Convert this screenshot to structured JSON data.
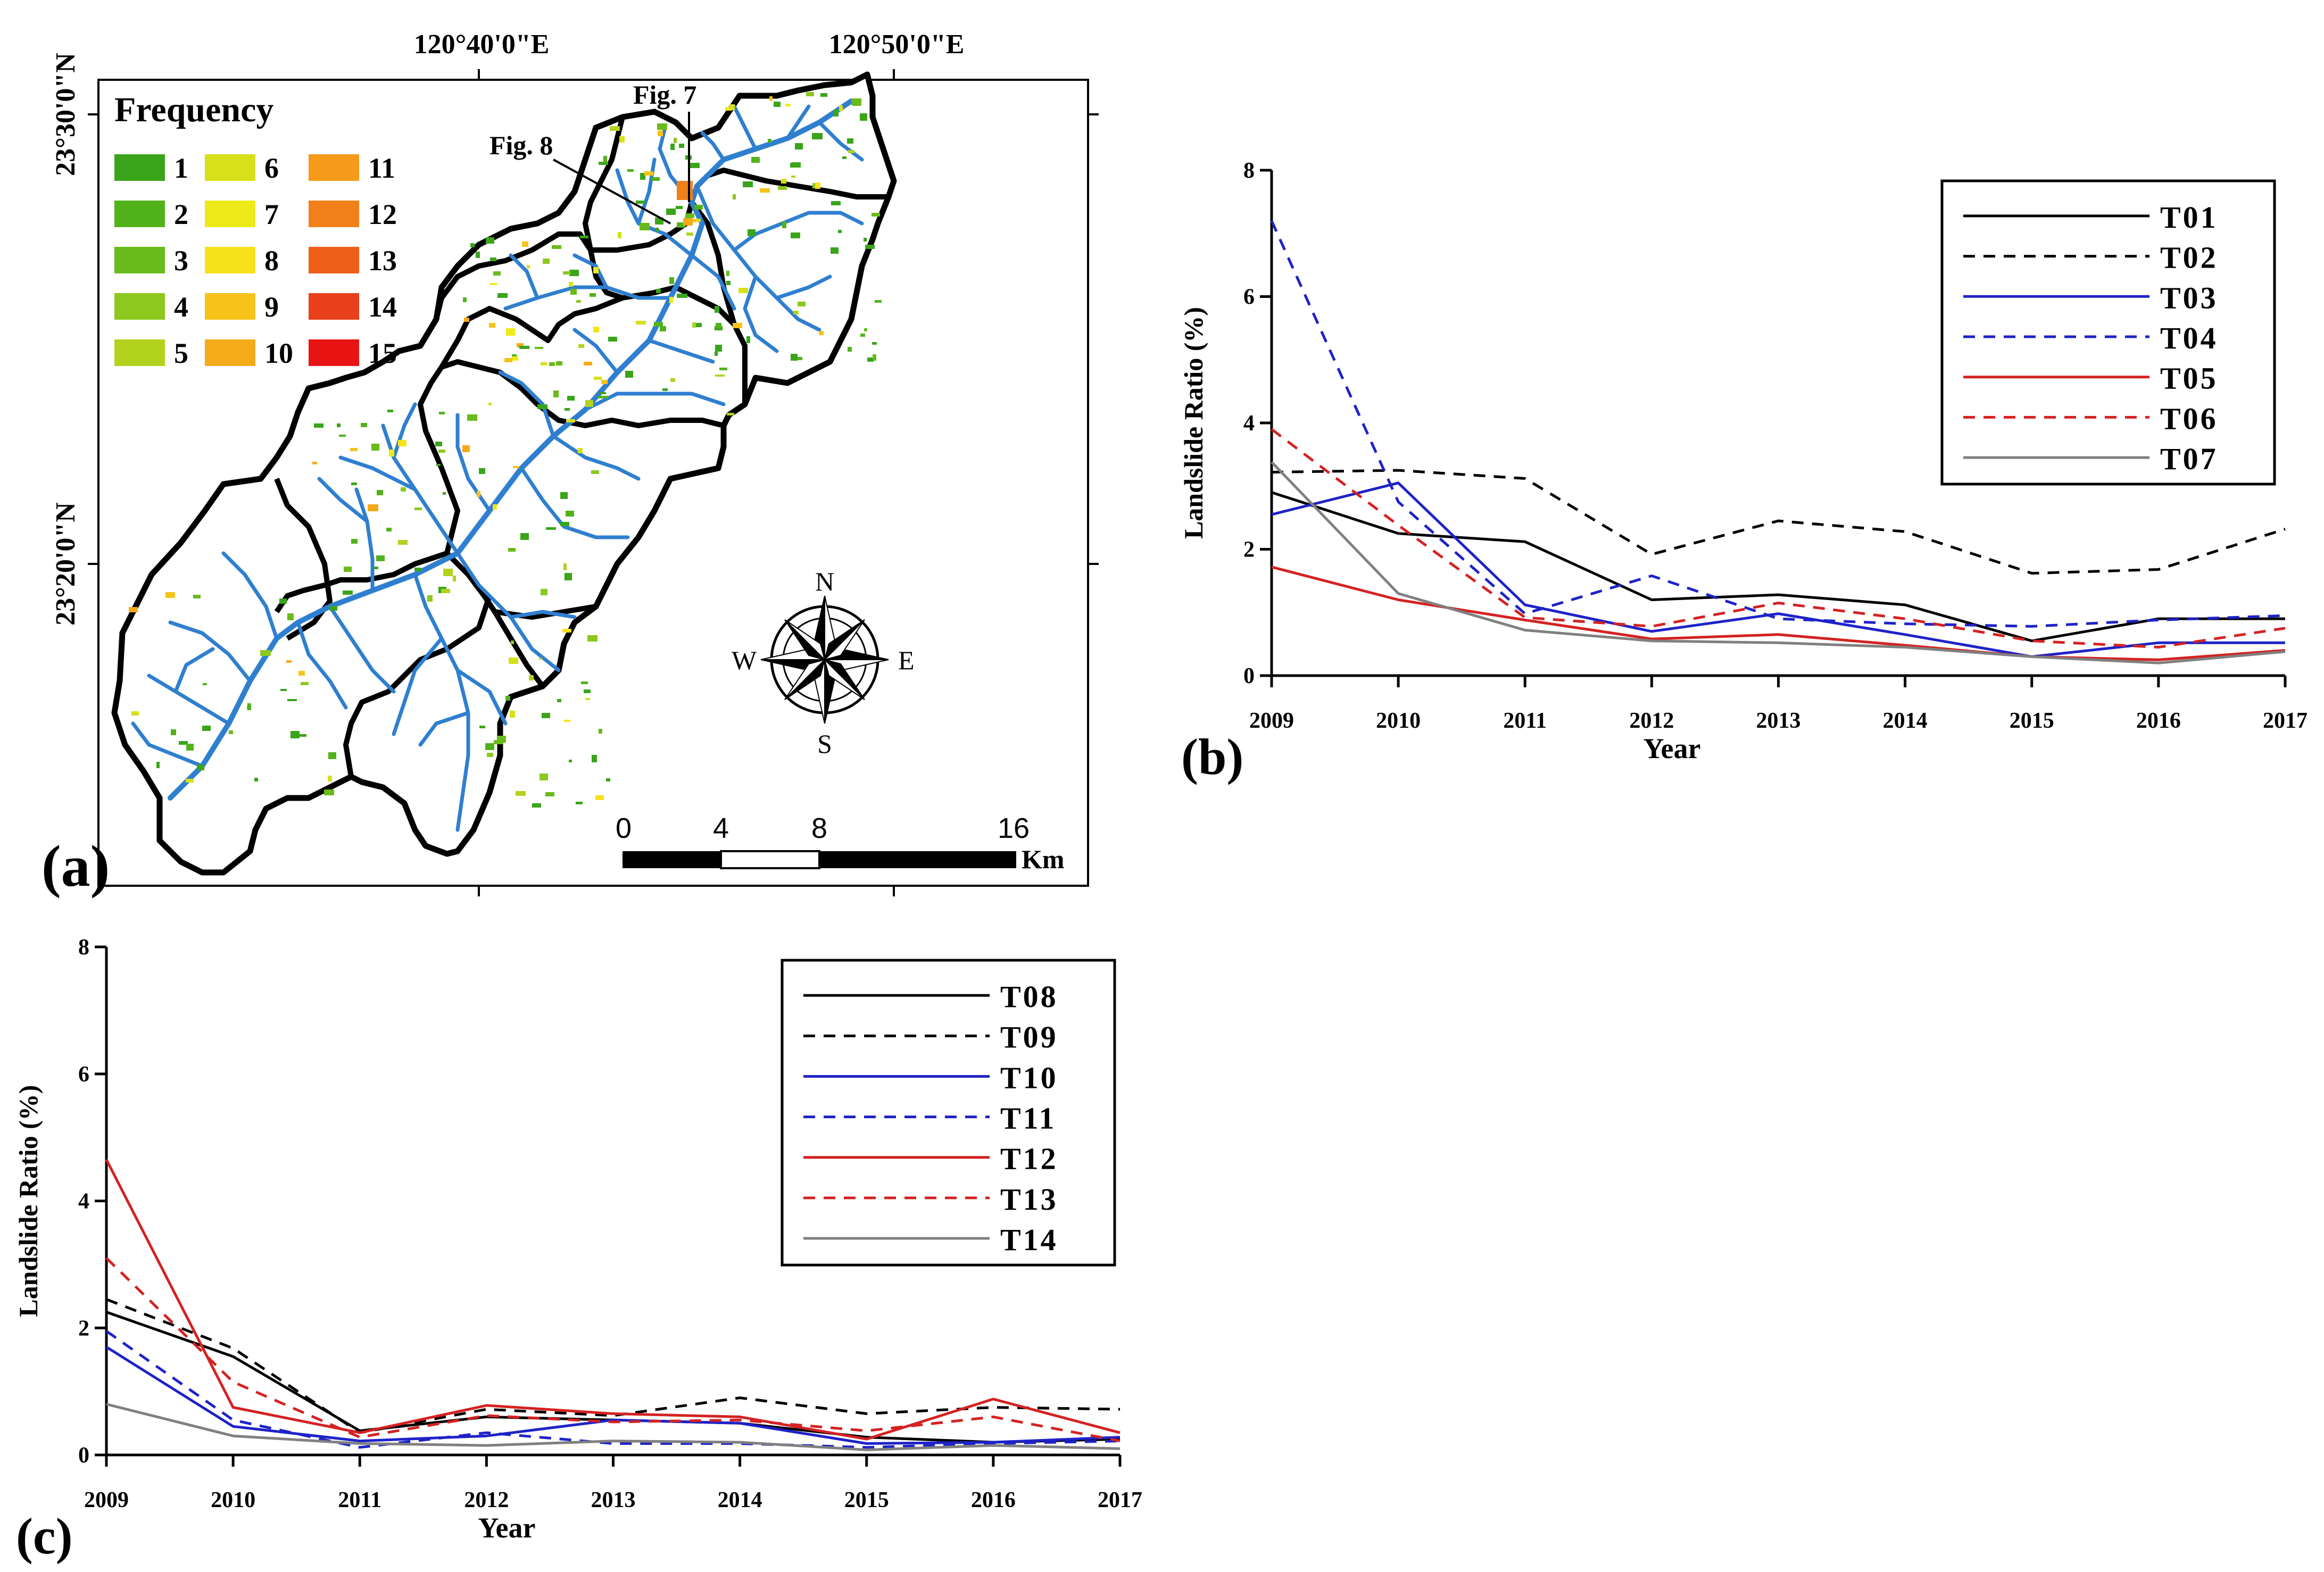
{
  "colors": {
    "river": "#2f7fd0",
    "boundary": "#000000",
    "black": "#000000",
    "blue": "#1e22c8",
    "red": "#d42222",
    "gray": "#808080",
    "freq": [
      "#3aa51a",
      "#52b21a",
      "#68bb1a",
      "#8cc81e",
      "#b2d21e",
      "#d7e01a",
      "#eeea1a",
      "#f7e11a",
      "#f7c21a",
      "#f5aa1a",
      "#f59a1a",
      "#f2801a",
      "#ee601a",
      "#e8401a",
      "#e81414"
    ]
  },
  "map": {
    "panel_label": "(a)",
    "top_coords": [
      "120°40'0\"E",
      "120°50'0\"E"
    ],
    "left_coords": [
      "23°30'0\"N",
      "23°20'0\"N"
    ],
    "legend_title": "Frequency",
    "legend_labels": [
      "1",
      "2",
      "3",
      "4",
      "5",
      "6",
      "7",
      "8",
      "9",
      "10",
      "11",
      "12",
      "13",
      "14",
      "15"
    ],
    "fig_labels": [
      "Fig. 7",
      "Fig. 8"
    ],
    "compass": {
      "n": "N",
      "s": "S",
      "e": "E",
      "w": "W"
    },
    "scale_ticks": [
      "0",
      "4",
      "8",
      "16"
    ],
    "scale_unit": "Km"
  },
  "chart_data": [
    {
      "panel_label": "(b)",
      "type": "line",
      "xlabel": "Year",
      "ylabel": "Landslide Ratio (%)",
      "x": [
        2009,
        2010,
        2011,
        2012,
        2013,
        2014,
        2015,
        2016,
        2017
      ],
      "xticks": [
        "2009",
        "2010",
        "2011",
        "2012",
        "2013",
        "2014",
        "2015",
        "2016",
        "2017"
      ],
      "ylim": [
        0,
        8
      ],
      "yticks": [
        "0",
        "2",
        "4",
        "6",
        "8"
      ],
      "legend_position": "top-right",
      "series": [
        {
          "name": "T01",
          "color": "black",
          "dash": false,
          "values": [
            2.9,
            2.25,
            2.12,
            1.2,
            1.28,
            1.12,
            0.55,
            0.9,
            0.9
          ]
        },
        {
          "name": "T02",
          "color": "black",
          "dash": true,
          "values": [
            3.22,
            3.25,
            3.12,
            1.92,
            2.45,
            2.28,
            1.62,
            1.68,
            2.32
          ]
        },
        {
          "name": "T03",
          "color": "blue",
          "dash": false,
          "values": [
            2.55,
            3.05,
            1.12,
            0.7,
            0.98,
            0.65,
            0.3,
            0.52,
            0.52
          ]
        },
        {
          "name": "T04",
          "color": "blue",
          "dash": true,
          "values": [
            7.2,
            2.75,
            0.98,
            1.58,
            0.9,
            0.82,
            0.78,
            0.88,
            0.95
          ]
        },
        {
          "name": "T05",
          "color": "red",
          "dash": false,
          "values": [
            1.72,
            1.2,
            0.88,
            0.58,
            0.65,
            0.48,
            0.3,
            0.25,
            0.4
          ]
        },
        {
          "name": "T06",
          "color": "red",
          "dash": true,
          "values": [
            3.9,
            2.38,
            0.92,
            0.78,
            1.15,
            0.9,
            0.55,
            0.45,
            0.75
          ]
        },
        {
          "name": "T07",
          "color": "gray",
          "dash": false,
          "values": [
            3.38,
            1.3,
            0.72,
            0.55,
            0.52,
            0.45,
            0.3,
            0.2,
            0.38
          ]
        }
      ]
    },
    {
      "panel_label": "(c)",
      "type": "line",
      "xlabel": "Year",
      "ylabel": "Landslide Ratio (%)",
      "x": [
        2009,
        2010,
        2011,
        2012,
        2013,
        2014,
        2015,
        2016,
        2017
      ],
      "xticks": [
        "2009",
        "2010",
        "2011",
        "2012",
        "2013",
        "2014",
        "2015",
        "2016",
        "2017"
      ],
      "ylim": [
        0,
        8
      ],
      "yticks": [
        "0",
        "2",
        "4",
        "6",
        "8"
      ],
      "legend_position": "top-right",
      "series": [
        {
          "name": "T08",
          "color": "black",
          "dash": false,
          "values": [
            2.25,
            1.55,
            0.38,
            0.6,
            0.55,
            0.5,
            0.28,
            0.2,
            0.25
          ]
        },
        {
          "name": "T09",
          "color": "black",
          "dash": true,
          "values": [
            2.45,
            1.68,
            0.35,
            0.72,
            0.62,
            0.9,
            0.65,
            0.75,
            0.72
          ]
        },
        {
          "name": "T10",
          "color": "blue",
          "dash": false,
          "values": [
            1.7,
            0.45,
            0.22,
            0.3,
            0.55,
            0.5,
            0.18,
            0.2,
            0.28
          ]
        },
        {
          "name": "T11",
          "color": "blue",
          "dash": true,
          "values": [
            1.95,
            0.55,
            0.12,
            0.35,
            0.18,
            0.18,
            0.12,
            0.18,
            0.22
          ]
        },
        {
          "name": "T12",
          "color": "red",
          "dash": false,
          "values": [
            4.65,
            0.75,
            0.35,
            0.78,
            0.65,
            0.6,
            0.25,
            0.88,
            0.35
          ]
        },
        {
          "name": "T13",
          "color": "red",
          "dash": true,
          "values": [
            3.1,
            1.15,
            0.28,
            0.62,
            0.52,
            0.55,
            0.38,
            0.6,
            0.22
          ]
        },
        {
          "name": "T14",
          "color": "gray",
          "dash": false,
          "values": [
            0.8,
            0.3,
            0.18,
            0.15,
            0.22,
            0.2,
            0.08,
            0.15,
            0.1
          ]
        }
      ]
    }
  ]
}
